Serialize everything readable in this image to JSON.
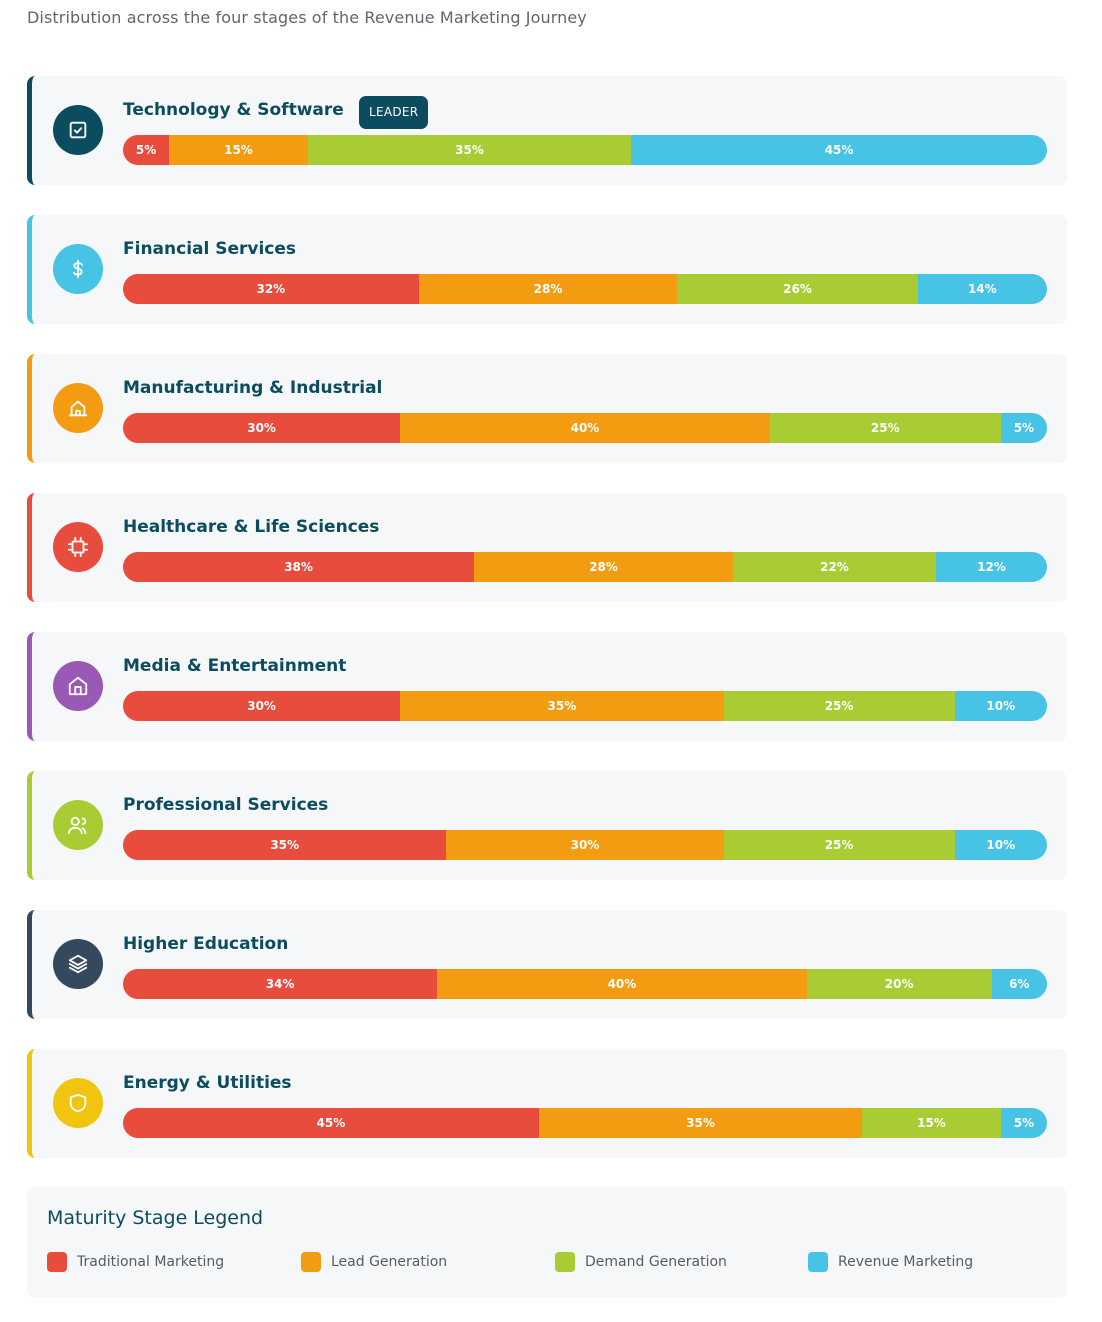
{
  "subtitle": "Distribution across the four stages of the Revenue Marketing Journey",
  "chart_data": {
    "type": "bar",
    "orientation": "horizontal",
    "stacked": true,
    "unit": "%",
    "categories": [
      "Technology & Software",
      "Financial Services",
      "Manufacturing & Industrial",
      "Healthcare & Life Sciences",
      "Media & Entertainment",
      "Professional Services",
      "Higher Education",
      "Energy & Utilities"
    ],
    "series": [
      {
        "name": "Traditional Marketing",
        "color": "#e84c3d",
        "values": [
          5,
          32,
          30,
          38,
          30,
          35,
          34,
          45
        ]
      },
      {
        "name": "Lead Generation",
        "color": "#f39c12",
        "values": [
          15,
          28,
          40,
          28,
          35,
          30,
          40,
          35
        ]
      },
      {
        "name": "Demand Generation",
        "color": "#a9cc35",
        "values": [
          35,
          26,
          25,
          22,
          25,
          25,
          20,
          15
        ]
      },
      {
        "name": "Revenue Marketing",
        "color": "#47c3e6",
        "values": [
          45,
          14,
          5,
          12,
          10,
          10,
          6,
          5
        ]
      }
    ],
    "legend_position": "bottom"
  },
  "industries": [
    {
      "name": "Technology & Software",
      "badge": "LEADER",
      "accent": "#0b4c5f",
      "icon": "check-box-icon"
    },
    {
      "name": "Financial Services",
      "badge": "",
      "accent": "#47c3e6",
      "icon": "dollar-icon"
    },
    {
      "name": "Manufacturing & Industrial",
      "badge": "",
      "accent": "#f39c12",
      "icon": "factory-icon"
    },
    {
      "name": "Healthcare & Life Sciences",
      "badge": "",
      "accent": "#e84c3d",
      "icon": "chip-icon"
    },
    {
      "name": "Media & Entertainment",
      "badge": "",
      "accent": "#9b59b6",
      "icon": "home-icon"
    },
    {
      "name": "Professional Services",
      "badge": "",
      "accent": "#a9cc35",
      "icon": "users-icon"
    },
    {
      "name": "Higher Education",
      "badge": "",
      "accent": "#34495e",
      "icon": "layers-icon"
    },
    {
      "name": "Energy & Utilities",
      "badge": "",
      "accent": "#f1c40f",
      "icon": "shield-icon"
    }
  ],
  "legend": {
    "title": "Maturity Stage Legend"
  }
}
